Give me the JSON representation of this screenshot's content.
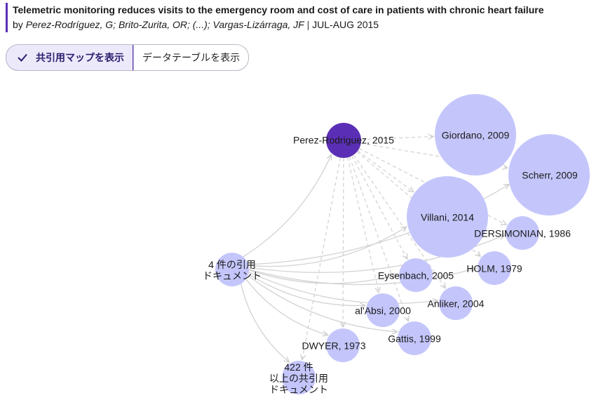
{
  "article": {
    "title": "Telemetric monitoring reduces visits to the emergency room and cost of care in patients with chronic heart failure",
    "by": "by",
    "authors": "Perez-Rodríguez, G; Brito-Zurita, OR; (...); Vargas-Lizárraga, JF",
    "separator": "|",
    "date": "JUL-AUG 2015"
  },
  "toggle": {
    "map_label": "共引用マップを表示",
    "table_label": "データテーブルを表示"
  },
  "colors": {
    "accent": "#5b2fb5",
    "focal_node": "#5b2fb5",
    "node": "#c4c6fb",
    "edge": "#d3d3d3"
  },
  "graph": {
    "focal": {
      "label": "Perez-Rodriguez, 2015"
    },
    "cited": [
      {
        "label": "Giordano, 2009",
        "size": 58
      },
      {
        "label": "Scherr, 2009",
        "size": 58
      },
      {
        "label": "Villani, 2014",
        "size": 58
      },
      {
        "label": "DERSIMONIAN, 1986",
        "size": 24
      },
      {
        "label": "HOLM, 1979",
        "size": 24
      },
      {
        "label": "Eysenbach, 2005",
        "size": 24
      },
      {
        "label": "Anliker, 2004",
        "size": 24
      },
      {
        "label": "al'Absi, 2000",
        "size": 24
      },
      {
        "label": "Gattis, 1999",
        "size": 24
      },
      {
        "label": "DWYER, 1973",
        "size": 24
      }
    ],
    "group_nodes": [
      {
        "lines": [
          "4 件の引用",
          "ドキュメント"
        ]
      },
      {
        "lines": [
          "422 件",
          "以上の共引用",
          "ドキュメント"
        ]
      }
    ]
  }
}
